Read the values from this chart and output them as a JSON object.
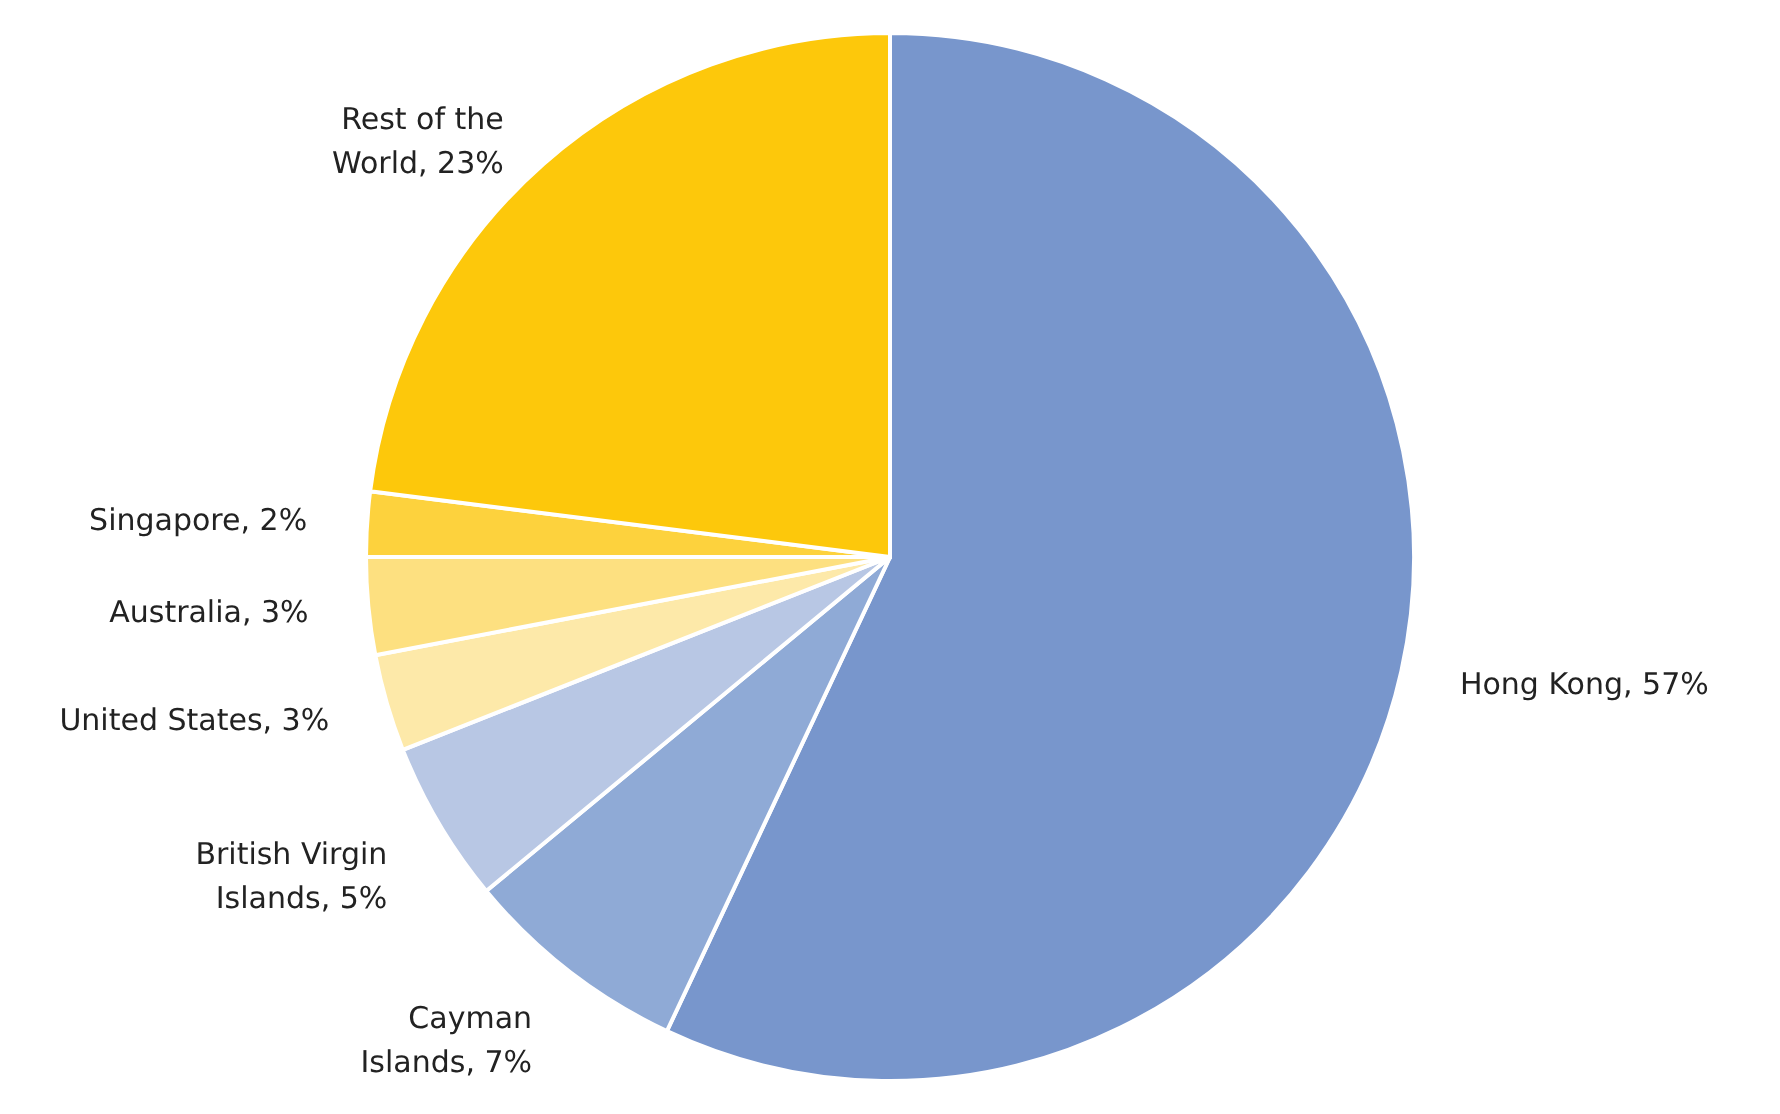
{
  "chart_data": {
    "type": "pie",
    "categories": [
      "Hong Kong",
      "Cayman Islands",
      "British Virgin Islands",
      "United States",
      "Australia",
      "Singapore",
      "Rest of the World"
    ],
    "values": [
      57,
      7,
      5,
      3,
      3,
      2,
      23
    ],
    "value_labels": [
      "57%",
      "7%",
      "5%",
      "3%",
      "3%",
      "2%",
      "23%"
    ],
    "colors": [
      "#7896cc",
      "#8faad6",
      "#b8c7e4",
      "#fde9a9",
      "#fde080",
      "#fdd23d",
      "#fdc80b"
    ]
  }
}
